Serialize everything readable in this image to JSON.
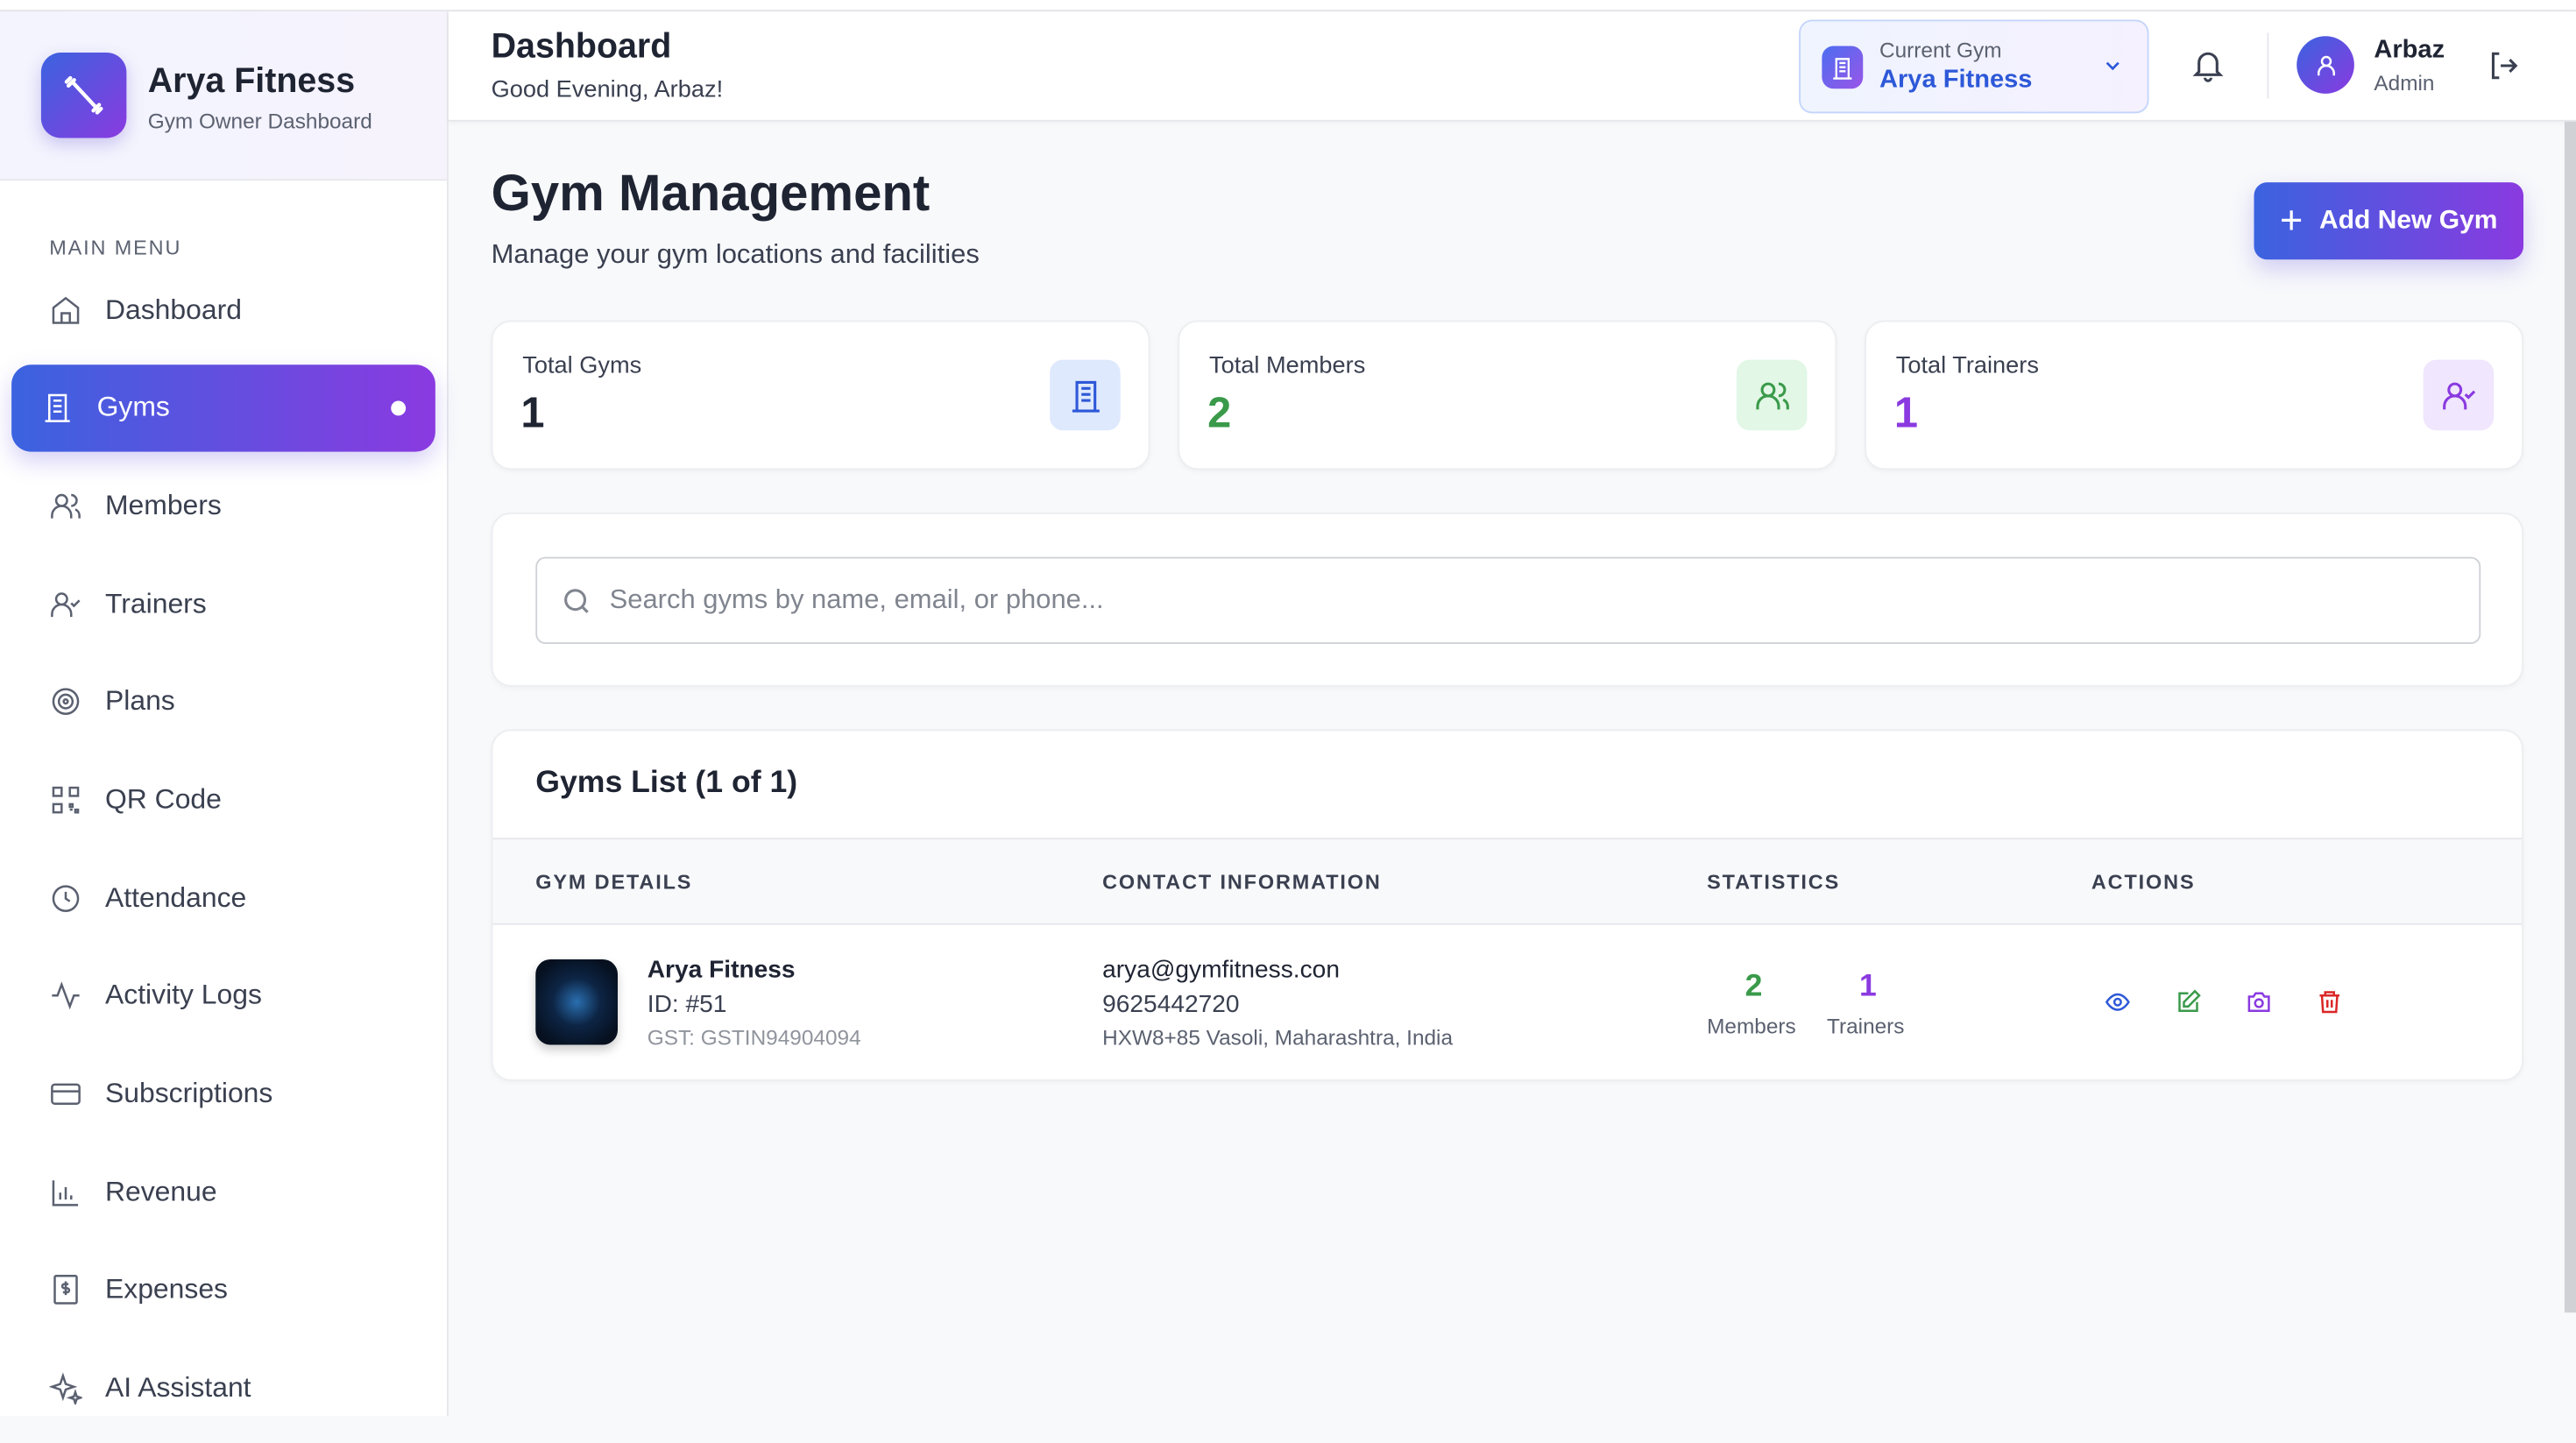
{
  "brand": {
    "name": "Arya Fitness",
    "subtitle": "Gym Owner Dashboard",
    "icon": "dumbbell-icon"
  },
  "sidebar": {
    "section_title": "MAIN MENU",
    "items": [
      {
        "label": "Dashboard",
        "icon": "home-icon"
      },
      {
        "label": "Gyms",
        "icon": "building-icon",
        "active": true
      },
      {
        "label": "Members",
        "icon": "users-icon"
      },
      {
        "label": "Trainers",
        "icon": "user-check-icon"
      },
      {
        "label": "Plans",
        "icon": "target-icon"
      },
      {
        "label": "QR Code",
        "icon": "qr-code-icon"
      },
      {
        "label": "Attendance",
        "icon": "clock-icon"
      },
      {
        "label": "Activity Logs",
        "icon": "activity-icon"
      },
      {
        "label": "Subscriptions",
        "icon": "credit-card-icon"
      },
      {
        "label": "Revenue",
        "icon": "bar-chart-icon"
      },
      {
        "label": "Expenses",
        "icon": "receipt-icon"
      },
      {
        "label": "AI Assistant",
        "icon": "sparkles-icon"
      }
    ]
  },
  "header": {
    "title": "Dashboard",
    "greeting": "Good Evening, Arbaz!",
    "current_gym_label": "Current Gym",
    "current_gym": "Arya Fitness",
    "user_name": "Arbaz",
    "user_role": "Admin"
  },
  "main": {
    "title": "Gym Management",
    "subtitle": "Manage your gym locations and facilities",
    "add_button": "Add New Gym",
    "stats": [
      {
        "label": "Total Gyms",
        "value": "1",
        "color": "#1f2433"
      },
      {
        "label": "Total Members",
        "value": "2",
        "color": "#3a9a4a"
      },
      {
        "label": "Total Trainers",
        "value": "1",
        "color": "#8a3ae0"
      }
    ],
    "search_placeholder": "Search gyms by name, email, or phone...",
    "list_title": "Gyms List (1 of 1)",
    "columns": [
      "GYM DETAILS",
      "CONTACT INFORMATION",
      "STATISTICS",
      "ACTIONS"
    ],
    "rows": [
      {
        "name": "Arya Fitness",
        "id": "ID: #51",
        "gst": "GST: GSTIN94904094",
        "email": "arya@gymfitness.con",
        "phone": "9625442720",
        "address": "HXW8+85 Vasoli, Maharashtra, India",
        "members": "2",
        "members_label": "Members",
        "trainers": "1",
        "trainers_label": "Trainers"
      }
    ]
  }
}
